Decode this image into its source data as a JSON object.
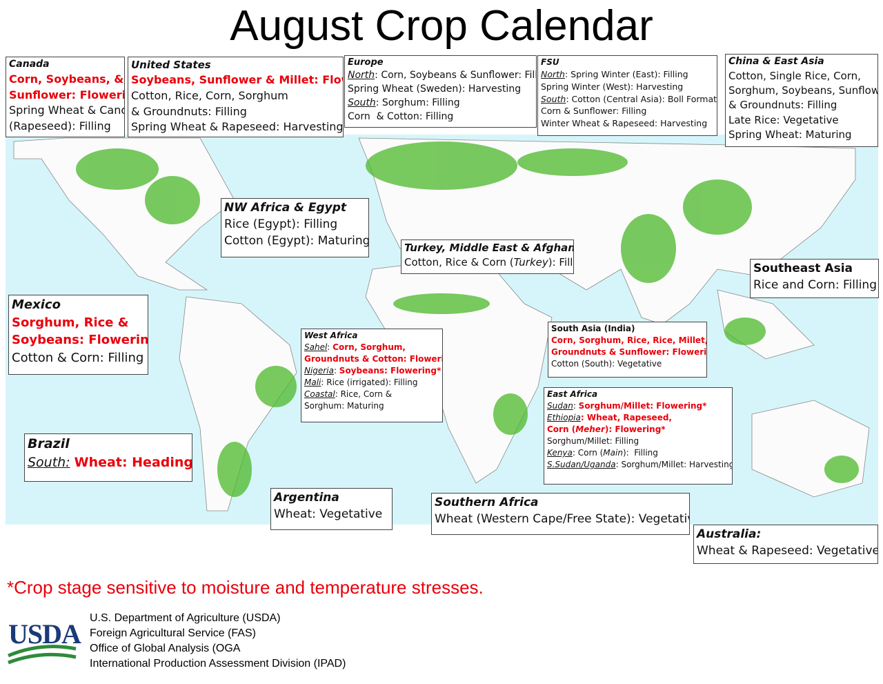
{
  "title": "August Crop Calendar",
  "regions": [
    {
      "title": "Canada",
      "lines": [
        [
          {
            "text": "Corn, Soybeans, &",
            "color": "#e8000b",
            "bold": true
          }
        ],
        [
          {
            "text": "Sunflower: Flowering*",
            "color": "#e8000b",
            "bold": true
          }
        ],
        [
          {
            "text": "Spring Wheat & Canola"
          }
        ],
        [
          {
            "text": "(Rapeseed): Filling"
          }
        ]
      ]
    },
    {
      "title": "United States",
      "lines": [
        [
          {
            "text": "Soybeans, Sunflower & Millet: Flowering*",
            "color": "#e8000b",
            "bold": true
          }
        ],
        [
          {
            "text": "Cotton, Rice, Corn, Sorghum"
          }
        ],
        [
          {
            "text": "& Groundnuts: Filling"
          }
        ],
        [
          {
            "text": "Spring Wheat & Rapeseed: Harvesting"
          }
        ]
      ]
    },
    {
      "title": "Europe",
      "lines": [
        [
          {
            "text": "North",
            "underline": true,
            "italic": true
          },
          {
            "text": ": Corn, Soybeans & Sunflower: Filling"
          }
        ],
        [
          {
            "text": "Spring Wheat (Sweden): Harvesting"
          }
        ],
        [
          {
            "text": "South",
            "underline": true,
            "italic": true
          },
          {
            "text": ": Sorghum: Filling"
          }
        ],
        [
          {
            "text": "Corn  & Cotton: Filling"
          }
        ]
      ]
    },
    {
      "title": "FSU",
      "lines": [
        [
          {
            "text": "North",
            "underline": true,
            "italic": true
          },
          {
            "text": ": Spring Winter (East): Filling"
          }
        ],
        [
          {
            "text": "Spring Winter (West): Harvesting"
          }
        ],
        [
          {
            "text": "South",
            "underline": true,
            "italic": true
          },
          {
            "text": ": Cotton (Central Asia): Boll Formation"
          }
        ],
        [
          {
            "text": "Corn & Sunflower: Filling"
          }
        ],
        [
          {
            "text": "Winter Wheat & Rapeseed: Harvesting"
          }
        ]
      ]
    },
    {
      "title": "China & East Asia",
      "lines": [
        [
          {
            "text": "Cotton, Single Rice, Corn,"
          }
        ],
        [
          {
            "text": "Sorghum, Soybeans, Sunflower"
          }
        ],
        [
          {
            "text": "& Groundnuts: Filling"
          }
        ],
        [
          {
            "text": "Late Rice: Vegetative"
          }
        ],
        [
          {
            "text": "Spring Wheat: Maturing"
          }
        ]
      ]
    },
    {
      "title": "NW Africa & Egypt",
      "lines": [
        [
          {
            "text": "Rice (Egypt): Filling"
          }
        ],
        [
          {
            "text": "Cotton (Egypt): Maturing"
          }
        ]
      ]
    },
    {
      "title": "Turkey, Middle East & Afghanistan",
      "lines": [
        [
          {
            "text": "Cotton, Rice & Corn ("
          },
          {
            "text": "Turkey",
            "italic": true
          },
          {
            "text": "): Filling"
          }
        ]
      ]
    },
    {
      "title": "Southeast Asia",
      "lines": [
        [
          {
            "text": "Rice and Corn: Filling"
          }
        ]
      ]
    },
    {
      "title": "Mexico",
      "lines": [
        [
          {
            "text": "Sorghum, Rice &",
            "color": "#e8000b",
            "bold": true
          }
        ],
        [
          {
            "text": "Soybeans: Flowering*",
            "color": "#e8000b",
            "bold": true
          }
        ],
        [
          {
            "text": "Cotton & Corn: Filling"
          }
        ]
      ]
    },
    {
      "title": "West Africa",
      "lines": [
        [
          {
            "text": "Sahel",
            "underline": true,
            "italic": true
          },
          {
            "text": ": "
          },
          {
            "text": "Corn, Sorghum,",
            "color": "#e8000b",
            "bold": true
          }
        ],
        [
          {
            "text": "Groundnuts & Cotton: Flowering*",
            "color": "#e8000b",
            "bold": true
          }
        ],
        [
          {
            "text": "Nigeria",
            "underline": true,
            "italic": true
          },
          {
            "text": ": "
          },
          {
            "text": "Soybeans: Flowering*",
            "color": "#e8000b",
            "bold": true
          }
        ],
        [
          {
            "text": "Mali",
            "underline": true,
            "italic": true
          },
          {
            "text": ": Rice (irrigated): Filling"
          }
        ],
        [
          {
            "text": "Coastal",
            "underline": true,
            "italic": true
          },
          {
            "text": ": Rice, Corn &"
          }
        ],
        [
          {
            "text": "Sorghum: Maturing"
          }
        ]
      ]
    },
    {
      "title": "South Asia (India)",
      "lines": [
        [
          {
            "text": "Corn, Sorghum, Rice, Rice, Millet,",
            "color": "#e8000b",
            "bold": true
          }
        ],
        [
          {
            "text": "Groundnuts & Sunflower: Flowering*",
            "color": "#e8000b",
            "bold": true
          }
        ],
        [
          {
            "text": "Cotton (South): Vegetative"
          }
        ]
      ]
    },
    {
      "title": "East Africa",
      "lines": [
        [
          {
            "text": "Sudan",
            "underline": true,
            "italic": true
          },
          {
            "text": ": "
          },
          {
            "text": "Sorghum/Millet: Flowering*",
            "color": "#e8000b",
            "bold": true
          }
        ],
        [
          {
            "text": "Ethiopia",
            "underline": true,
            "italic": true
          },
          {
            "text": ": Wheat, Rapeseed,",
            "color": "#e8000b",
            "bold": true
          }
        ],
        [
          {
            "text": "Corn (",
            "color": "#e8000b",
            "bold": true
          },
          {
            "text": "Meher",
            "color": "#e8000b",
            "bold": true,
            "italic": true
          },
          {
            "text": "): Flowering*",
            "color": "#e8000b",
            "bold": true
          }
        ],
        [
          {
            "text": "Sorghum/Millet: Filling"
          }
        ],
        [
          {
            "text": "Kenya",
            "underline": true,
            "italic": true
          },
          {
            "text": ": Corn ("
          },
          {
            "text": "Main",
            "italic": true
          },
          {
            "text": "):  Filling"
          }
        ],
        [
          {
            "text": "S.Sudan/Uganda",
            "underline": true,
            "italic": true
          },
          {
            "text": ": Sorghum/Millet: Harvesting"
          }
        ]
      ]
    },
    {
      "title": "Brazil",
      "lines": [
        [
          {
            "text": "South:",
            "underline": true,
            "italic": true
          },
          {
            "text": " "
          },
          {
            "text": "Wheat: Heading*",
            "color": "#e8000b",
            "bold": true
          }
        ]
      ]
    },
    {
      "title": "Argentina",
      "lines": [
        [
          {
            "text": "Wheat: Vegetative"
          }
        ]
      ]
    },
    {
      "title": "Southern Africa",
      "lines": [
        [
          {
            "text": "Wheat (Western Cape/Free State): Vegetative"
          }
        ]
      ]
    },
    {
      "title": "Australia:",
      "lines": [
        [
          {
            "text": "Wheat & Rapeseed: Vegetative"
          }
        ]
      ]
    }
  ],
  "footnote": "*Crop stage sensitive to moisture and temperature stresses.",
  "logo": "USDA",
  "credits": [
    "U.S. Department of Agriculture (USDA)",
    "Foreign Agricultural Service (FAS)",
    "Office of Global Analysis (OGA",
    "International Production Assessment Division (IPAD)"
  ]
}
